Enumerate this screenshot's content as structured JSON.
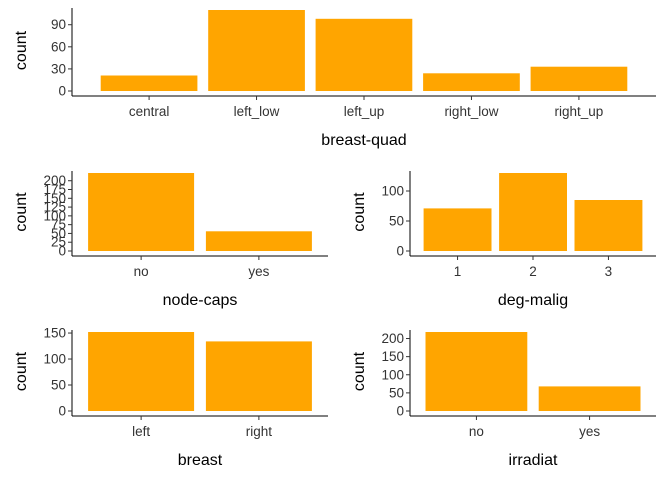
{
  "bar_color": "#FFA500",
  "chart_data": [
    {
      "id": "breast-quad",
      "type": "bar",
      "categories": [
        "central",
        "left_low",
        "left_up",
        "right_low",
        "right_up"
      ],
      "values": [
        21,
        110,
        98,
        24,
        33
      ],
      "xlabel": "breast-quad",
      "ylabel": "count",
      "ylim": [
        0,
        110
      ],
      "yticks": [
        0,
        30,
        60,
        90
      ],
      "grid": false,
      "legend": "none"
    },
    {
      "id": "node-caps",
      "type": "bar",
      "categories": [
        "no",
        "yes"
      ],
      "values": [
        222,
        56
      ],
      "xlabel": "node-caps",
      "ylabel": "count",
      "ylim": [
        0,
        222
      ],
      "yticks": [
        0,
        25,
        50,
        75,
        100,
        125,
        150,
        175,
        200
      ],
      "grid": false,
      "legend": "none"
    },
    {
      "id": "deg-malig",
      "type": "bar",
      "categories": [
        "1",
        "2",
        "3"
      ],
      "values": [
        71,
        130,
        85
      ],
      "xlabel": "deg-malig",
      "ylabel": "count",
      "ylim": [
        0,
        130
      ],
      "yticks": [
        0,
        50,
        100
      ],
      "grid": false,
      "legend": "none"
    },
    {
      "id": "breast",
      "type": "bar",
      "categories": [
        "left",
        "right"
      ],
      "values": [
        152,
        134
      ],
      "xlabel": "breast",
      "ylabel": "count",
      "ylim": [
        0,
        152
      ],
      "yticks": [
        0,
        50,
        100,
        150
      ],
      "grid": false,
      "legend": "none"
    },
    {
      "id": "irradiat",
      "type": "bar",
      "categories": [
        "no",
        "yes"
      ],
      "values": [
        218,
        68
      ],
      "xlabel": "irradiat",
      "ylabel": "count",
      "ylim": [
        0,
        218
      ],
      "yticks": [
        0,
        50,
        100,
        150,
        200
      ],
      "grid": false,
      "legend": "none"
    }
  ]
}
